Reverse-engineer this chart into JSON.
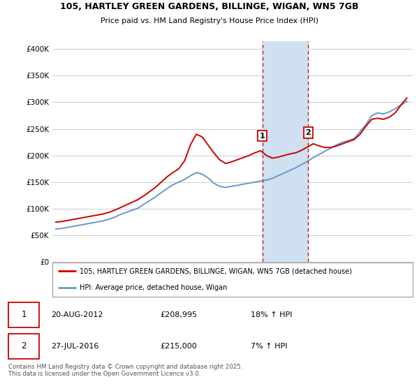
{
  "title1": "105, HARTLEY GREEN GARDENS, BILLINGE, WIGAN, WN5 7GB",
  "title2": "Price paid vs. HM Land Registry's House Price Index (HPI)",
  "ylabel_ticks": [
    "£0",
    "£50K",
    "£100K",
    "£150K",
    "£200K",
    "£250K",
    "£300K",
    "£350K",
    "£400K"
  ],
  "ytick_vals": [
    0,
    50000,
    100000,
    150000,
    200000,
    250000,
    300000,
    350000,
    400000
  ],
  "ylim": [
    0,
    415000
  ],
  "xlim_start": 1994.7,
  "xlim_end": 2025.5,
  "xticks": [
    1995,
    1996,
    1997,
    1998,
    1999,
    2000,
    2001,
    2002,
    2003,
    2004,
    2005,
    2006,
    2007,
    2008,
    2009,
    2010,
    2011,
    2012,
    2013,
    2014,
    2015,
    2016,
    2017,
    2018,
    2019,
    2020,
    2021,
    2022,
    2023,
    2024,
    2025
  ],
  "sale1_x": 2012.64,
  "sale1_y": 208995,
  "sale1_label": "1",
  "sale2_x": 2016.57,
  "sale2_y": 215000,
  "sale2_label": "2",
  "shade_x1": 2012.64,
  "shade_x2": 2016.57,
  "legend_line1": "105, HARTLEY GREEN GARDENS, BILLINGE, WIGAN, WN5 7GB (detached house)",
  "legend_line2": "HPI: Average price, detached house, Wigan",
  "table_row1": [
    "1",
    "20-AUG-2012",
    "£208,995",
    "18% ↑ HPI"
  ],
  "table_row2": [
    "2",
    "27-JUL-2016",
    "£215,000",
    "7% ↑ HPI"
  ],
  "footnote": "Contains HM Land Registry data © Crown copyright and database right 2025.\nThis data is licensed under the Open Government Licence v3.0.",
  "color_red": "#cc0000",
  "color_blue": "#6699cc",
  "color_shade": "#cfe0f0",
  "color_grid": "#cccccc",
  "color_dashed": "#cc0000",
  "hpi_years": [
    1995,
    1995.5,
    1996,
    1996.5,
    1997,
    1997.5,
    1998,
    1998.5,
    1999,
    1999.5,
    2000,
    2000.5,
    2001,
    2001.5,
    2002,
    2002.5,
    2003,
    2003.5,
    2004,
    2004.5,
    2005,
    2005.5,
    2006,
    2006.5,
    2007,
    2007.5,
    2008,
    2008.5,
    2009,
    2009.5,
    2010,
    2010.5,
    2011,
    2011.5,
    2012,
    2012.5,
    2013,
    2013.5,
    2014,
    2014.5,
    2015,
    2015.5,
    2016,
    2016.5,
    2017,
    2017.5,
    2018,
    2018.5,
    2019,
    2019.5,
    2020,
    2020.5,
    2021,
    2021.5,
    2022,
    2022.5,
    2023,
    2023.5,
    2024,
    2024.5,
    2025
  ],
  "hpi_vals": [
    62000,
    63000,
    65000,
    67000,
    69000,
    71000,
    73000,
    75000,
    77000,
    80000,
    84000,
    89000,
    93000,
    97000,
    101000,
    108000,
    115000,
    122000,
    130000,
    138000,
    145000,
    150000,
    155000,
    162000,
    168000,
    165000,
    158000,
    148000,
    142000,
    140000,
    142000,
    144000,
    146000,
    148000,
    150000,
    152000,
    154000,
    157000,
    162000,
    167000,
    172000,
    177000,
    183000,
    189000,
    196000,
    202000,
    208000,
    214000,
    220000,
    225000,
    228000,
    232000,
    245000,
    258000,
    275000,
    280000,
    278000,
    282000,
    288000,
    295000,
    302000
  ],
  "red_years": [
    1995,
    1995.5,
    1996,
    1996.5,
    1997,
    1997.5,
    1998,
    1998.5,
    1999,
    1999.5,
    2000,
    2000.5,
    2001,
    2001.5,
    2002,
    2002.5,
    2003,
    2003.5,
    2004,
    2004.5,
    2005,
    2005.5,
    2006,
    2006.5,
    2007,
    2007.5,
    2008,
    2008.5,
    2009,
    2009.5,
    2010,
    2010.5,
    2011,
    2011.5,
    2012,
    2012.5,
    2013,
    2013.5,
    2014,
    2014.5,
    2015,
    2015.5,
    2016,
    2016.5,
    2017,
    2017.5,
    2018,
    2018.5,
    2019,
    2019.5,
    2020,
    2020.5,
    2021,
    2021.5,
    2022,
    2022.5,
    2023,
    2023.5,
    2024,
    2024.5,
    2025
  ],
  "red_vals": [
    75000,
    76000,
    78000,
    80000,
    82000,
    84000,
    86000,
    88000,
    90000,
    93000,
    97000,
    102000,
    107000,
    112000,
    117000,
    124000,
    132000,
    140000,
    150000,
    160000,
    168000,
    175000,
    190000,
    220000,
    240000,
    235000,
    220000,
    205000,
    192000,
    185000,
    188000,
    192000,
    196000,
    200000,
    205000,
    209000,
    200000,
    195000,
    197000,
    200000,
    203000,
    205000,
    210000,
    216000,
    222000,
    218000,
    215000,
    215000,
    218000,
    222000,
    226000,
    230000,
    240000,
    255000,
    268000,
    270000,
    268000,
    272000,
    280000,
    295000,
    308000
  ]
}
